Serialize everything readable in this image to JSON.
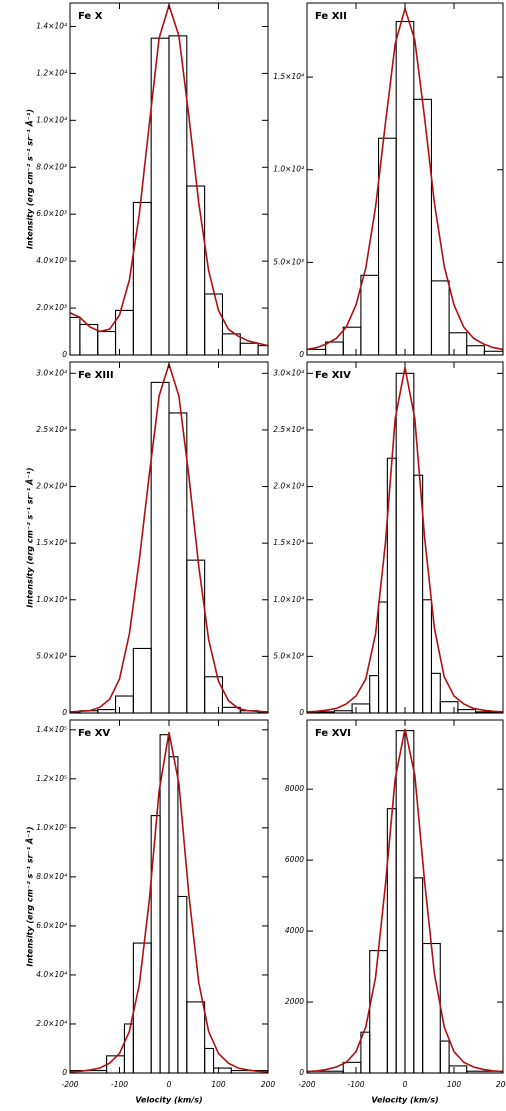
{
  "chart_data": [
    {
      "type": "histogram",
      "title": "Fe X",
      "ylabel": "Intensity (erg cm⁻² s⁻¹ sr⁻¹ Å⁻¹)",
      "xlim": [
        -200,
        200
      ],
      "xticks": [
        -200,
        -100,
        0,
        100,
        200
      ],
      "ylim": [
        0,
        15000
      ],
      "yticks": [
        0,
        {
          "value": 2000,
          "label": "2.0×10³"
        },
        {
          "value": 4000,
          "label": "4.0×10³"
        },
        {
          "value": 6000,
          "label": "6.0×10³"
        },
        {
          "value": 8000,
          "label": "8.0×10³"
        },
        {
          "value": 10000,
          "label": "1.0×10⁴"
        },
        {
          "value": 12000,
          "label": "1.2×10⁴"
        },
        {
          "value": 14000,
          "label": "1.4×10⁴"
        }
      ],
      "bins": [
        -200,
        -180,
        -144,
        -108,
        -72,
        -36,
        0,
        36,
        72,
        108,
        144,
        180,
        200
      ],
      "counts": [
        1600,
        1300,
        1000,
        1900,
        6500,
        13500,
        13600,
        7200,
        2600,
        900,
        500,
        400
      ],
      "color": "#000000",
      "fit": {
        "color": "#b01010",
        "x": [
          -200,
          -180,
          -160,
          -140,
          -120,
          -100,
          -80,
          -60,
          -40,
          -20,
          0,
          20,
          40,
          60,
          80,
          100,
          120,
          140,
          160,
          180,
          200
        ],
        "values": [
          1800,
          1600,
          1200,
          1000,
          1100,
          1700,
          3200,
          6000,
          9800,
          13500,
          14900,
          13600,
          10200,
          6500,
          3600,
          1900,
          1100,
          800,
          600,
          500,
          400
        ]
      }
    },
    {
      "type": "histogram",
      "title": "Fe XII",
      "xlim": [
        -200,
        200
      ],
      "xticks": [
        -200,
        -100,
        0,
        100,
        200
      ],
      "ylim": [
        0,
        19000
      ],
      "yticks": [
        0,
        {
          "value": 5000,
          "label": "5.0×10³"
        },
        {
          "value": 10000,
          "label": "1.0×10⁴"
        },
        {
          "value": 15000,
          "label": "1.5×10⁴"
        }
      ],
      "bins": [
        -200,
        -162,
        -126,
        -90,
        -54,
        -18,
        18,
        54,
        90,
        126,
        162,
        200
      ],
      "counts": [
        300,
        700,
        1500,
        4300,
        11700,
        18000,
        13800,
        4000,
        1200,
        500,
        200
      ],
      "color": "#000000",
      "fit": {
        "color": "#b01010",
        "x": [
          -200,
          -180,
          -160,
          -140,
          -120,
          -100,
          -80,
          -60,
          -40,
          -20,
          0,
          20,
          40,
          60,
          80,
          100,
          120,
          140,
          160,
          180,
          200
        ],
        "values": [
          300,
          400,
          600,
          900,
          1500,
          2700,
          4700,
          8000,
          12500,
          16800,
          18700,
          17000,
          12800,
          8200,
          4800,
          2700,
          1500,
          900,
          600,
          400,
          300
        ]
      }
    },
    {
      "type": "histogram",
      "title": "Fe XIII",
      "ylabel": "Intensity (erg cm⁻² s⁻¹ sr⁻¹ Å⁻¹)",
      "xlim": [
        -200,
        200
      ],
      "xticks": [
        -200,
        -100,
        0,
        100,
        200
      ],
      "ylim": [
        0,
        31000
      ],
      "yticks": [
        0,
        {
          "value": 5000,
          "label": "5.0×10³"
        },
        {
          "value": 10000,
          "label": "1.0×10⁴"
        },
        {
          "value": 15000,
          "label": "1.5×10⁴"
        },
        {
          "value": 20000,
          "label": "2.0×10⁴"
        },
        {
          "value": 25000,
          "label": "2.5×10⁴"
        },
        {
          "value": 30000,
          "label": "3.0×10⁴"
        }
      ],
      "bins": [
        -200,
        -180,
        -144,
        -108,
        -72,
        -36,
        0,
        36,
        72,
        108,
        144,
        180,
        200
      ],
      "counts": [
        100,
        200,
        300,
        1500,
        5700,
        29200,
        26500,
        13500,
        3200,
        500,
        200,
        100
      ],
      "color": "#000000",
      "fit": {
        "color": "#b01010",
        "x": [
          -200,
          -180,
          -160,
          -140,
          -120,
          -100,
          -80,
          -60,
          -40,
          -20,
          0,
          20,
          40,
          60,
          80,
          100,
          120,
          140,
          160,
          180,
          200
        ],
        "values": [
          100,
          150,
          200,
          500,
          1200,
          3000,
          7000,
          13500,
          21000,
          28000,
          30800,
          28000,
          21000,
          13000,
          6500,
          2800,
          1100,
          400,
          200,
          150,
          100
        ]
      }
    },
    {
      "type": "histogram",
      "title": "Fe XIV",
      "xlim": [
        -200,
        200
      ],
      "xticks": [
        -200,
        -100,
        0,
        100,
        200
      ],
      "ylim": [
        0,
        31000
      ],
      "yticks": [
        0,
        {
          "value": 5000,
          "label": "5.0×10³"
        },
        {
          "value": 10000,
          "label": "1.0×10⁴"
        },
        {
          "value": 15000,
          "label": "1.5×10⁴"
        },
        {
          "value": 20000,
          "label": "2.0×10⁴"
        },
        {
          "value": 25000,
          "label": "2.5×10⁴"
        },
        {
          "value": 30000,
          "label": "3.0×10⁴"
        }
      ],
      "bins": [
        -200,
        -144,
        -108,
        -72,
        -54,
        -36,
        -18,
        18,
        36,
        54,
        72,
        108,
        144,
        200
      ],
      "counts": [
        100,
        200,
        800,
        3300,
        9800,
        22500,
        30000,
        21000,
        10000,
        3500,
        1000,
        300,
        100
      ],
      "color": "#000000",
      "fit": {
        "color": "#b01010",
        "x": [
          -200,
          -180,
          -160,
          -140,
          -120,
          -100,
          -80,
          -60,
          -40,
          -20,
          0,
          20,
          40,
          60,
          80,
          100,
          120,
          140,
          160,
          180,
          200
        ],
        "values": [
          100,
          150,
          250,
          400,
          800,
          1500,
          3000,
          7000,
          15000,
          26000,
          30500,
          26000,
          15500,
          7500,
          3200,
          1500,
          800,
          400,
          250,
          150,
          100
        ]
      }
    },
    {
      "type": "histogram",
      "title": "Fe XV",
      "ylabel": "Intensity (erg cm⁻² s⁻¹ sr⁻¹ Å⁻¹)",
      "xlabel": "Velocity (km/s)",
      "xlim": [
        -200,
        200
      ],
      "xticks": [
        -200,
        -100,
        0,
        100,
        200
      ],
      "ylim": [
        0,
        144000
      ],
      "yticks": [
        0,
        {
          "value": 20000,
          "label": "2.0×10⁴"
        },
        {
          "value": 40000,
          "label": "4.0×10⁴"
        },
        {
          "value": 60000,
          "label": "6.0×10⁴"
        },
        {
          "value": 80000,
          "label": "8.0×10⁴"
        },
        {
          "value": 100000,
          "label": "1.0×10⁵"
        },
        {
          "value": 120000,
          "label": "1.2×10⁵"
        },
        {
          "value": 140000,
          "label": "1.4×10⁵"
        }
      ],
      "bins": [
        -200,
        -126,
        -90,
        -72,
        -36,
        -18,
        0,
        18,
        36,
        72,
        90,
        126,
        200
      ],
      "counts": [
        1000,
        7000,
        20000,
        53000,
        105000,
        138000,
        129000,
        72000,
        29000,
        10000,
        2000,
        1000
      ],
      "color": "#000000",
      "fit": {
        "color": "#b01010",
        "x": [
          -200,
          -180,
          -160,
          -140,
          -120,
          -100,
          -80,
          -60,
          -40,
          -20,
          0,
          20,
          40,
          60,
          80,
          100,
          120,
          140,
          160,
          180,
          200
        ],
        "values": [
          500,
          700,
          1200,
          2000,
          4000,
          8000,
          17000,
          36000,
          70000,
          115000,
          139000,
          118000,
          73000,
          37000,
          17000,
          8000,
          4000,
          2000,
          1200,
          700,
          500
        ]
      }
    },
    {
      "type": "histogram",
      "title": "Fe XVI",
      "xlabel": "Velocity (km/s)",
      "xlim": [
        -200,
        200
      ],
      "xticks": [
        -200,
        -100,
        0,
        100,
        200
      ],
      "ylim": [
        0,
        9950
      ],
      "yticks": [
        0,
        2000,
        4000,
        6000,
        8000
      ],
      "bins": [
        -200,
        -126,
        -90,
        -72,
        -36,
        -18,
        0,
        18,
        36,
        72,
        90,
        126,
        200
      ],
      "counts": [
        50,
        300,
        1150,
        3450,
        7450,
        9650,
        9650,
        5500,
        3650,
        900,
        200,
        50
      ],
      "color": "#000000",
      "fit": {
        "color": "#b01010",
        "x": [
          -200,
          -180,
          -160,
          -140,
          -120,
          -100,
          -80,
          -60,
          -40,
          -20,
          0,
          20,
          40,
          60,
          80,
          100,
          120,
          140,
          160,
          180,
          200
        ],
        "values": [
          40,
          60,
          100,
          170,
          300,
          600,
          1300,
          2700,
          5300,
          8300,
          9700,
          8400,
          5400,
          2800,
          1300,
          600,
          300,
          170,
          100,
          60,
          40
        ]
      }
    }
  ]
}
